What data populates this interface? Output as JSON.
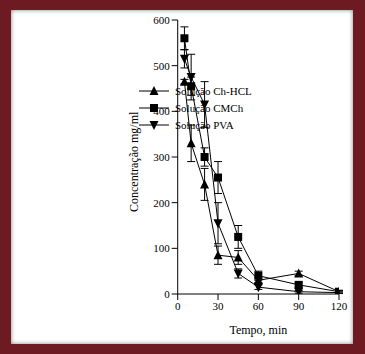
{
  "chart_data": {
    "type": "line",
    "x_label": "Tempo, min",
    "y_label": "Concentração mg/ml",
    "x": [
      5,
      10,
      20,
      30,
      45,
      60,
      90,
      120
    ],
    "xlim": [
      0,
      120
    ],
    "xticks": [
      0,
      30,
      60,
      90,
      120
    ],
    "ylim": [
      0,
      600
    ],
    "yticks": [
      0,
      100,
      200,
      300,
      400,
      500,
      600
    ],
    "grid": false,
    "legend": "upper right",
    "series": [
      {
        "name": "Solução Ch-HCL",
        "color": "#000000",
        "marker": "triangle-up",
        "values": [
          465,
          330,
          240,
          85,
          80,
          30,
          45,
          5
        ],
        "errors": [
          5,
          40,
          35,
          20,
          15,
          5,
          5,
          3
        ]
      },
      {
        "name": "Solução CMCh",
        "color": "#000000",
        "marker": "square",
        "values": [
          560,
          455,
          300,
          255,
          125,
          40,
          20,
          5
        ],
        "errors": [
          25,
          20,
          20,
          35,
          25,
          10,
          5,
          3
        ]
      },
      {
        "name": "Solução PVA",
        "color": "#000000",
        "marker": "triangle-down",
        "values": [
          515,
          475,
          415,
          155,
          45,
          15,
          5,
          3
        ],
        "errors": [
          20,
          50,
          50,
          45,
          10,
          5,
          3,
          2
        ]
      }
    ]
  }
}
